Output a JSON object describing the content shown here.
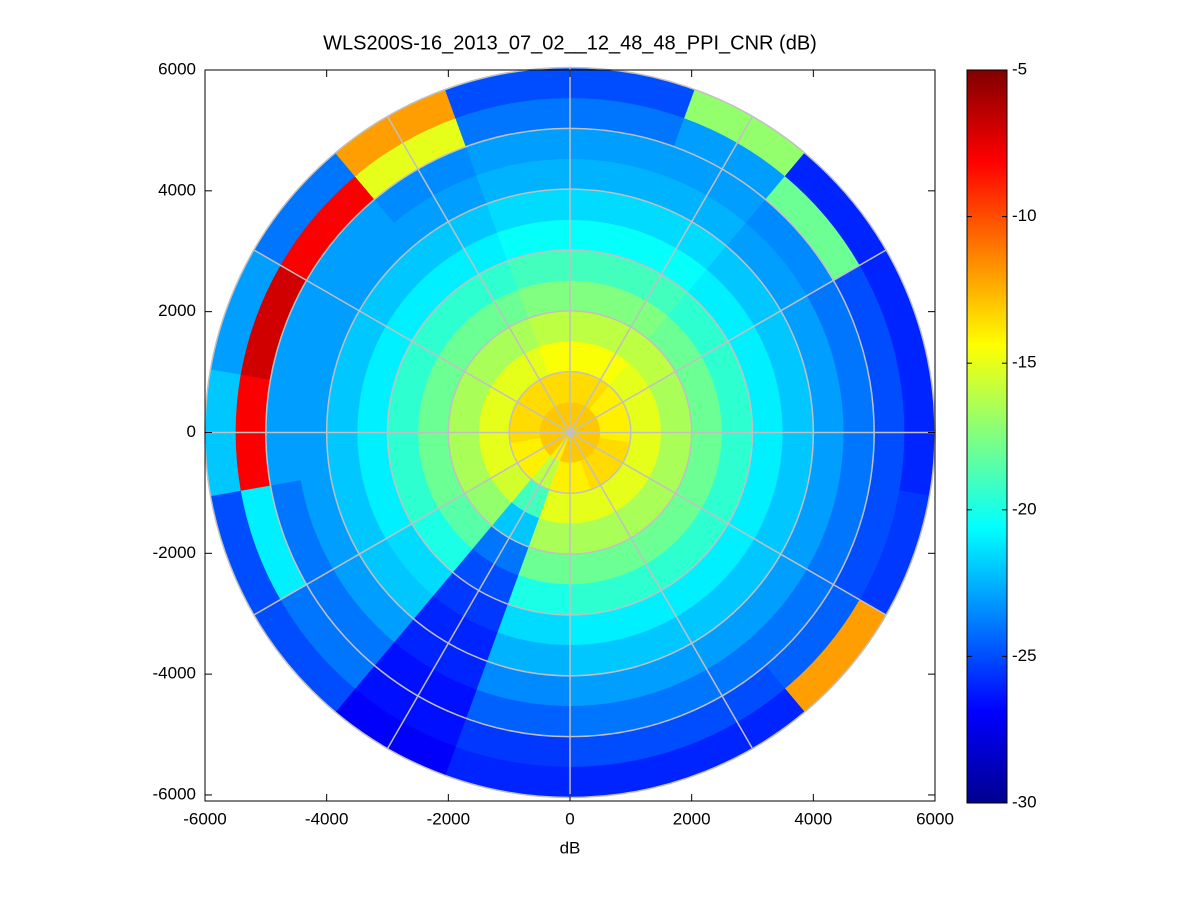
{
  "chart_data": {
    "type": "polar_heatmap",
    "title": "WLS200S-16_2013_07_02__12_48_48_PPI_CNR (dB)",
    "x_label": "dB",
    "xlim": [
      -6000,
      6000
    ],
    "ylim": [
      -6100,
      6000
    ],
    "xticks": [
      -6000,
      -4000,
      -2000,
      0,
      2000,
      4000,
      6000
    ],
    "yticks": [
      -6000,
      -4000,
      -2000,
      0,
      2000,
      4000,
      6000
    ],
    "rticks": [
      1000,
      2000,
      3000,
      4000,
      5000,
      6000
    ],
    "theta_ticks": [
      0,
      30,
      60,
      90,
      120,
      150,
      180,
      210,
      240,
      270,
      300,
      330
    ],
    "theta_edges": [
      0,
      20,
      40,
      60,
      80,
      100,
      120,
      140,
      160,
      180,
      200,
      220,
      240,
      260,
      280,
      300,
      320,
      340,
      360
    ],
    "r_edges": [
      0,
      500,
      1000,
      1500,
      2000,
      2500,
      3000,
      3500,
      4000,
      4500,
      5000,
      5500,
      6000
    ],
    "values": [
      [
        -13,
        -13.5,
        -14.5,
        -16,
        -17.5,
        -19,
        -20.5,
        -21.5,
        -22.5,
        -23,
        -24,
        -25
      ],
      [
        -13,
        -13.5,
        -14.5,
        -16,
        -17.5,
        -19,
        -20.5,
        -21.5,
        -22.5,
        -23,
        -23,
        -17
      ],
      [
        -13,
        -14,
        -15,
        -16,
        -18,
        -19.5,
        -21,
        -22,
        -23,
        -23.5,
        -18,
        -26
      ],
      [
        -13,
        -14,
        -15,
        -16.5,
        -18,
        -19.5,
        -21,
        -22,
        -23,
        -24,
        -25,
        -26
      ],
      [
        -13,
        -14,
        -15,
        -16.5,
        -18,
        -19.5,
        -21,
        -22,
        -23,
        -24,
        -25,
        -26
      ],
      [
        -13,
        -13.5,
        -15,
        -16.5,
        -18,
        -19.5,
        -21,
        -22,
        -23,
        -24,
        -25,
        -25.5
      ],
      [
        -13,
        -13.5,
        -15,
        -16.5,
        -18,
        -19.5,
        -21,
        -22,
        -23,
        -24,
        -24.5,
        -12
      ],
      [
        -13,
        -13.5,
        -15,
        -16.5,
        -18,
        -19.5,
        -21,
        -22,
        -23,
        -24,
        -25,
        -26
      ],
      [
        -13,
        -14,
        -15,
        -16.5,
        -18,
        -19.5,
        -21,
        -22,
        -23,
        -24,
        -25,
        -26
      ],
      [
        -13,
        -14,
        -15,
        -16.5,
        -18,
        -20,
        -21.5,
        -22.5,
        -23.5,
        -24.5,
        -25.5,
        -26
      ],
      [
        -14,
        -16,
        -19,
        -22,
        -24,
        -25,
        -25.5,
        -26,
        -26,
        -26.5,
        -26.5,
        -27
      ],
      [
        -13,
        -14,
        -15.5,
        -17,
        -18.5,
        -20,
        -21.5,
        -22,
        -23,
        -24,
        -24,
        -25
      ],
      [
        -13,
        -14,
        -15,
        -16.5,
        -18,
        -19.5,
        -21,
        -22,
        -23,
        -24,
        -21,
        -25
      ],
      [
        -13,
        -13.5,
        -15,
        -16.5,
        -18,
        -19.5,
        -21,
        -22,
        -23,
        -23,
        -8,
        -22
      ],
      [
        -13,
        -13.5,
        -15,
        -16.5,
        -18,
        -19.5,
        -21,
        -22,
        -23,
        -23,
        -7,
        -23
      ],
      [
        -13,
        -13.5,
        -15,
        -16.5,
        -18,
        -19.5,
        -21,
        -22,
        -23,
        -23,
        -8,
        -24
      ],
      [
        -13,
        -13.5,
        -15,
        -16.5,
        -18,
        -19.5,
        -21,
        -22,
        -23,
        -23.5,
        -15,
        -12
      ],
      [
        -13,
        -13.5,
        -14.5,
        -16,
        -17.5,
        -19,
        -20.5,
        -21.5,
        -22.5,
        -23,
        -24,
        -25
      ]
    ],
    "clim": [
      -30,
      -5
    ],
    "cticks": [
      -30,
      -25,
      -20,
      -15,
      -10,
      -5
    ],
    "colormap": [
      "#00008f",
      "#0000ff",
      "#0080ff",
      "#00ffff",
      "#80ff80",
      "#ffff00",
      "#ff8000",
      "#ff0000",
      "#800000"
    ],
    "grid_color": "#c0c0c0"
  }
}
